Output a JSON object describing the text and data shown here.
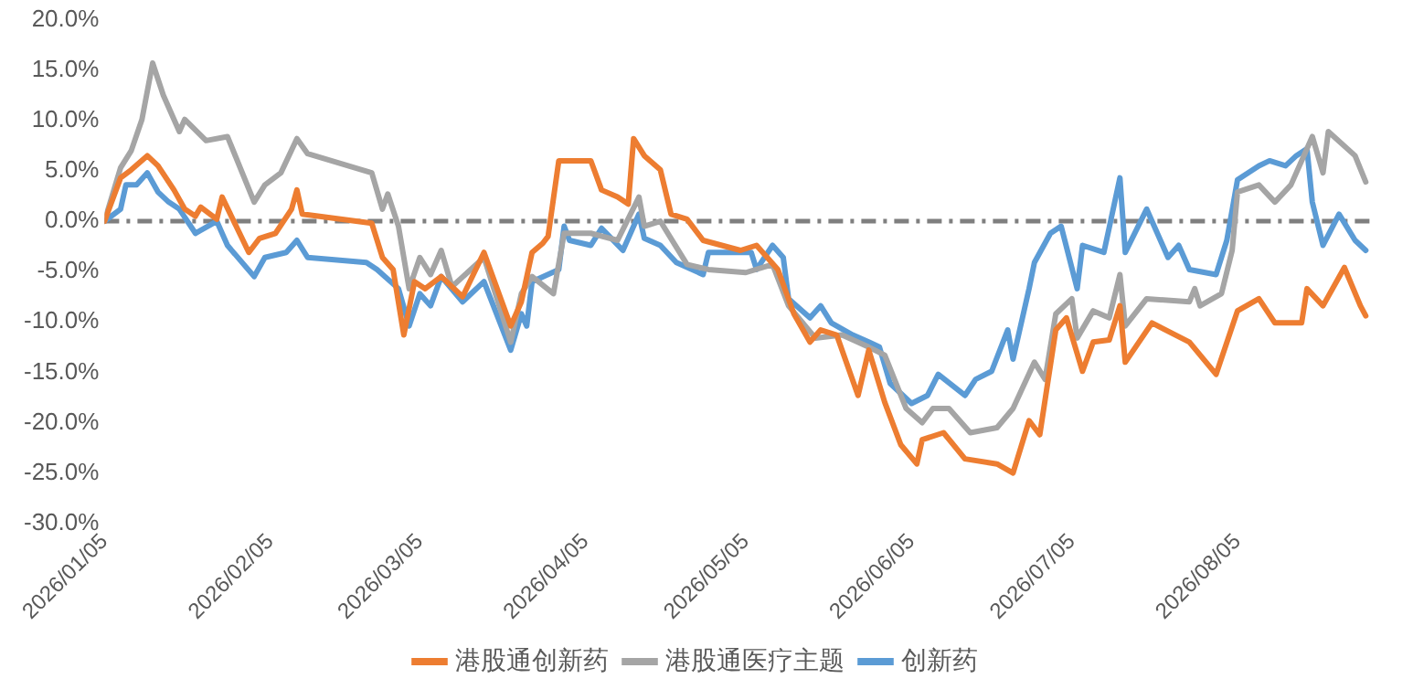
{
  "chart_data": {
    "type": "line",
    "xlim": [
      "2026-01-05",
      "2026-08-31"
    ],
    "xticks": [
      {
        "value": "2026-01-05",
        "label": "2026/01/05"
      },
      {
        "value": "2026-02-05",
        "label": "2026/02/05"
      },
      {
        "value": "2026-03-05",
        "label": "2026/03/05"
      },
      {
        "value": "2026-04-05",
        "label": "2026/04/05"
      },
      {
        "value": "2026-05-05",
        "label": "2026/05/05"
      },
      {
        "value": "2026-06-05",
        "label": "2026/06/05"
      },
      {
        "value": "2026-07-05",
        "label": "2026/07/05"
      },
      {
        "value": "2026-08-05",
        "label": "2026/08/05"
      }
    ],
    "ylim": [
      -30,
      20
    ],
    "yticks": [
      {
        "value": 20,
        "label": "20.0%"
      },
      {
        "value": 15,
        "label": "15.0%"
      },
      {
        "value": 10,
        "label": "10.0%"
      },
      {
        "value": 5,
        "label": "5.0%"
      },
      {
        "value": 0,
        "label": "0.0%"
      },
      {
        "value": -5,
        "label": "-5.0%"
      },
      {
        "value": -10,
        "label": "-10.0%"
      },
      {
        "value": -15,
        "label": "-15.0%"
      },
      {
        "value": -20,
        "label": "-20.0%"
      },
      {
        "value": -25,
        "label": "-25.0%"
      },
      {
        "value": -30,
        "label": "-30.0%"
      }
    ],
    "grid": false,
    "legend": "bottom",
    "marker": "none",
    "line_style": "solid",
    "ref_lines": [
      {
        "axis": "y",
        "value": 0,
        "color": "#7f7f7f",
        "line_style": "dashed"
      }
    ],
    "series": [
      {
        "name": "港股通创新药",
        "color": "#ed7d31",
        "x": [
          "2026-01-05",
          "2026-01-08",
          "2026-01-10",
          "2026-01-13",
          "2026-01-15",
          "2026-01-18",
          "2026-01-20",
          "2026-01-22",
          "2026-01-23",
          "2026-01-26",
          "2026-01-27",
          "2026-01-29",
          "2026-02-01",
          "2026-02-03",
          "2026-02-06",
          "2026-02-09",
          "2026-02-10",
          "2026-02-11",
          "2026-02-24",
          "2026-02-26",
          "2026-02-28",
          "2026-03-02",
          "2026-03-04",
          "2026-03-06",
          "2026-03-09",
          "2026-03-13",
          "2026-03-17",
          "2026-03-22",
          "2026-03-24",
          "2026-03-26",
          "2026-03-28",
          "2026-03-29",
          "2026-03-31",
          "2026-04-06",
          "2026-04-08",
          "2026-04-11",
          "2026-04-13",
          "2026-04-14",
          "2026-04-16",
          "2026-04-19",
          "2026-04-21",
          "2026-04-24",
          "2026-04-27",
          "2026-05-04",
          "2026-05-07",
          "2026-05-11",
          "2026-05-14",
          "2026-05-17",
          "2026-05-19",
          "2026-05-22",
          "2026-05-26",
          "2026-05-28",
          "2026-05-31",
          "2026-06-03",
          "2026-06-06",
          "2026-06-07",
          "2026-06-11",
          "2026-06-15",
          "2026-06-21",
          "2026-06-24",
          "2026-06-27",
          "2026-06-29",
          "2026-07-02",
          "2026-07-04",
          "2026-07-07",
          "2026-07-09",
          "2026-07-12",
          "2026-07-14",
          "2026-07-15",
          "2026-07-20",
          "2026-07-27",
          "2026-08-01",
          "2026-08-05",
          "2026-08-09",
          "2026-08-12",
          "2026-08-17",
          "2026-08-18",
          "2026-08-21",
          "2026-08-25",
          "2026-08-28",
          "2026-08-29"
        ],
        "values": [
          0,
          4.3,
          5.1,
          6.5,
          5.5,
          3.1,
          1.2,
          0.5,
          1.4,
          0.2,
          2.4,
          0.2,
          -3.1,
          -1.7,
          -1.2,
          1.2,
          3.1,
          0.7,
          -0.2,
          -3.6,
          -4.8,
          -11.3,
          -6,
          -6.7,
          -5.5,
          -7.5,
          -3.1,
          -10.4,
          -8,
          -3.1,
          -2.2,
          -1.5,
          6,
          6,
          3.1,
          2.4,
          1.7,
          8.2,
          6.5,
          5.1,
          0.7,
          0.2,
          -1.9,
          -2.9,
          -2.4,
          -4.8,
          -9.2,
          -12,
          -10.8,
          -11.3,
          -17.3,
          -12.8,
          -18,
          -22.2,
          -24.1,
          -21.7,
          -21,
          -23.6,
          -24.1,
          -25,
          -19.8,
          -21.2,
          -10.8,
          -9.6,
          -14.9,
          -12,
          -11.8,
          -8.4,
          -14,
          -10.1,
          -12,
          -15.2,
          -8.9,
          -7.7,
          -10.1,
          -10.1,
          -6.7,
          -8.4,
          -4.6,
          -8.4,
          -9.4
        ]
      },
      {
        "name": "港股通医疗主题",
        "color": "#a5a5a5",
        "x": [
          "2026-01-05",
          "2026-01-08",
          "2026-01-10",
          "2026-01-12",
          "2026-01-14",
          "2026-01-16",
          "2026-01-19",
          "2026-01-20",
          "2026-01-24",
          "2026-01-28",
          "2026-02-02",
          "2026-02-04",
          "2026-02-07",
          "2026-02-10",
          "2026-02-12",
          "2026-02-24",
          "2026-02-26",
          "2026-02-27",
          "2026-03-01",
          "2026-03-03",
          "2026-03-05",
          "2026-03-07",
          "2026-03-09",
          "2026-03-11",
          "2026-03-17",
          "2026-03-22",
          "2026-03-24",
          "2026-03-26",
          "2026-03-30",
          "2026-04-01",
          "2026-04-06",
          "2026-04-11",
          "2026-04-15",
          "2026-04-16",
          "2026-04-19",
          "2026-04-24",
          "2026-04-28",
          "2026-05-05",
          "2026-05-10",
          "2026-05-13",
          "2026-05-18",
          "2026-05-23",
          "2026-05-28",
          "2026-05-31",
          "2026-06-04",
          "2026-06-07",
          "2026-06-09",
          "2026-06-12",
          "2026-06-16",
          "2026-06-21",
          "2026-06-24",
          "2026-06-28",
          "2026-06-30",
          "2026-07-02",
          "2026-07-05",
          "2026-07-06",
          "2026-07-09",
          "2026-07-12",
          "2026-07-14",
          "2026-07-15",
          "2026-07-19",
          "2026-07-27",
          "2026-07-28",
          "2026-07-29",
          "2026-08-02",
          "2026-08-04",
          "2026-08-05",
          "2026-08-09",
          "2026-08-12",
          "2026-08-15",
          "2026-08-19",
          "2026-08-21",
          "2026-08-22",
          "2026-08-27",
          "2026-08-29"
        ],
        "values": [
          0,
          5.3,
          7,
          10.1,
          15.7,
          12.5,
          8.9,
          10.1,
          8,
          8.4,
          1.9,
          3.6,
          4.8,
          8.2,
          6.7,
          4.8,
          1.2,
          2.7,
          -0.5,
          -6.7,
          -3.6,
          -5.3,
          -2.9,
          -6.5,
          -3.6,
          -12,
          -7.2,
          -5.5,
          -7.2,
          -1.2,
          -1.2,
          -1.9,
          2.4,
          -0.5,
          0,
          -4.3,
          -4.8,
          -5.1,
          -4.3,
          -8.4,
          -11.6,
          -11.3,
          -12.5,
          -13.3,
          -18.6,
          -20,
          -18.6,
          -18.6,
          -21,
          -20.5,
          -18.6,
          -14,
          -15.7,
          -9.2,
          -7.7,
          -11.6,
          -8.9,
          -9.6,
          -5.3,
          -10.4,
          -7.7,
          -8,
          -6.7,
          -8.4,
          -7.2,
          -2.9,
          2.9,
          3.6,
          1.9,
          3.6,
          8.4,
          4.8,
          8.9,
          6.5,
          3.9
        ]
      },
      {
        "name": "创新药",
        "color": "#5b9bd5",
        "x": [
          "2026-01-05",
          "2026-01-08",
          "2026-01-09",
          "2026-01-11",
          "2026-01-13",
          "2026-01-15",
          "2026-01-17",
          "2026-01-19",
          "2026-01-22",
          "2026-01-26",
          "2026-01-28",
          "2026-02-02",
          "2026-02-04",
          "2026-02-08",
          "2026-02-10",
          "2026-02-12",
          "2026-02-23",
          "2026-02-25",
          "2026-03-01",
          "2026-03-03",
          "2026-03-05",
          "2026-03-07",
          "2026-03-09",
          "2026-03-13",
          "2026-03-17",
          "2026-03-22",
          "2026-03-24",
          "2026-03-25",
          "2026-03-26",
          "2026-03-31",
          "2026-04-01",
          "2026-04-02",
          "2026-04-06",
          "2026-04-08",
          "2026-04-12",
          "2026-04-15",
          "2026-04-16",
          "2026-04-19",
          "2026-04-22",
          "2026-04-27",
          "2026-04-28",
          "2026-05-06",
          "2026-05-07",
          "2026-05-10",
          "2026-05-12",
          "2026-05-13",
          "2026-05-17",
          "2026-05-19",
          "2026-05-21",
          "2026-05-25",
          "2026-05-28",
          "2026-05-30",
          "2026-06-01",
          "2026-06-05",
          "2026-06-08",
          "2026-06-10",
          "2026-06-15",
          "2026-06-17",
          "2026-06-20",
          "2026-06-23",
          "2026-06-24",
          "2026-06-27",
          "2026-06-28",
          "2026-07-01",
          "2026-07-03",
          "2026-07-06",
          "2026-07-07",
          "2026-07-11",
          "2026-07-14",
          "2026-07-15",
          "2026-07-19",
          "2026-07-23",
          "2026-07-25",
          "2026-07-27",
          "2026-08-01",
          "2026-08-03",
          "2026-08-05",
          "2026-08-09",
          "2026-08-11",
          "2026-08-14",
          "2026-08-16",
          "2026-08-18",
          "2026-08-19",
          "2026-08-21",
          "2026-08-24",
          "2026-08-27",
          "2026-08-29"
        ],
        "values": [
          0,
          1.2,
          3.6,
          3.6,
          4.8,
          2.9,
          1.9,
          1.2,
          -1.2,
          0,
          -2.4,
          -5.5,
          -3.6,
          -3.1,
          -1.9,
          -3.6,
          -4.1,
          -4.8,
          -6.7,
          -10.4,
          -7.2,
          -8.4,
          -5.5,
          -8,
          -6,
          -12.8,
          -9.2,
          -10.4,
          -6,
          -4.8,
          -0.5,
          -1.9,
          -2.4,
          -0.7,
          -2.9,
          0.7,
          -1.7,
          -2.4,
          -4.1,
          -5.3,
          -3.1,
          -3.1,
          -4.8,
          -2.4,
          -3.6,
          -7.7,
          -9.6,
          -8.4,
          -10.1,
          -11.3,
          -12,
          -12.5,
          -16.1,
          -18.1,
          -17.3,
          -15.2,
          -17.3,
          -15.7,
          -14.9,
          -10.8,
          -13.7,
          -6.7,
          -4.1,
          -1.2,
          -0.5,
          -6.7,
          -2.4,
          -3.1,
          4.3,
          -3.1,
          1.2,
          -3.6,
          -2.4,
          -4.8,
          -5.3,
          -1.9,
          4.1,
          5.5,
          6,
          5.5,
          6.5,
          7.2,
          1.9,
          -2.4,
          0.7,
          -1.9,
          -2.9
        ]
      }
    ]
  }
}
